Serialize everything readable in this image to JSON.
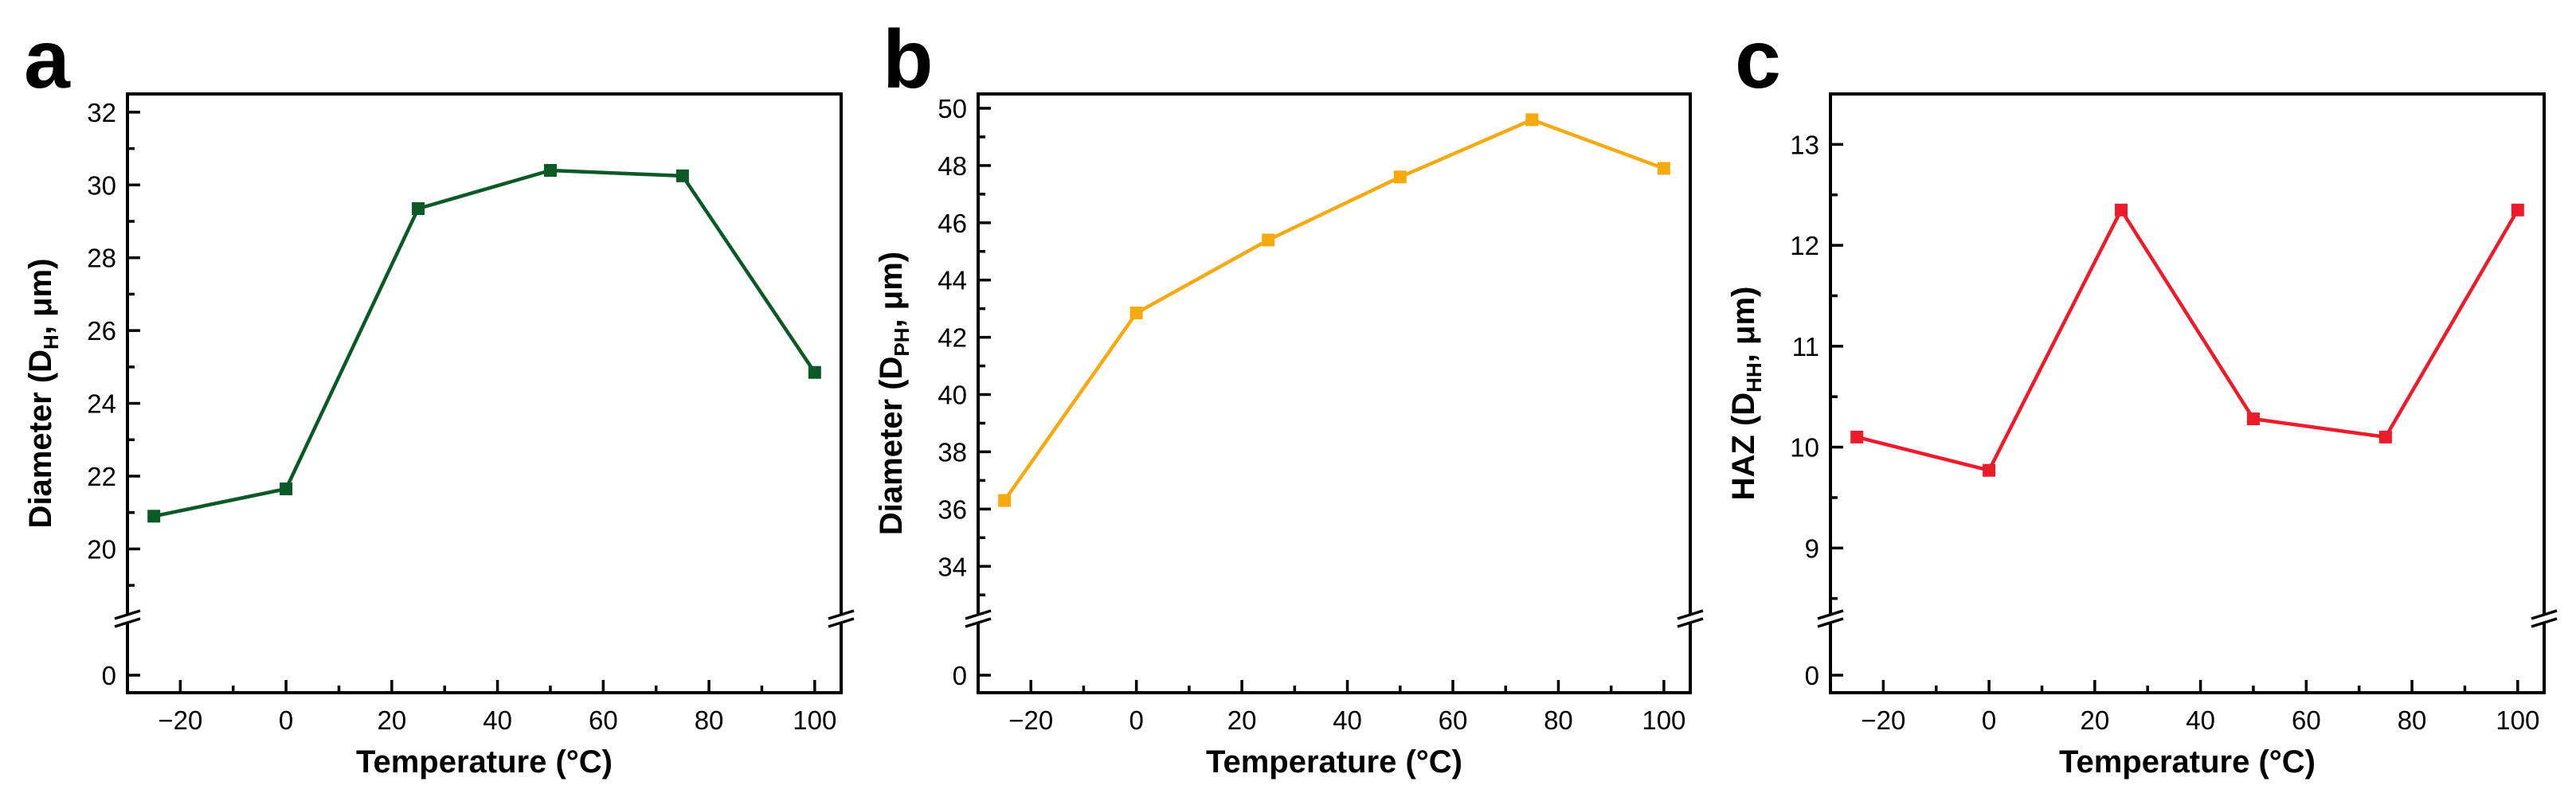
{
  "chart_data": [
    {
      "type": "line",
      "panel": "a",
      "color": "#0b5a26",
      "marker": "square",
      "x": [
        -25,
        0,
        25,
        50,
        75,
        100
      ],
      "values": [
        20.9,
        21.65,
        29.35,
        30.4,
        30.25,
        24.85
      ],
      "xlim": [
        -30,
        105
      ],
      "xticks": [
        -20,
        0,
        20,
        40,
        60,
        80,
        100
      ],
      "xtick_labels": [
        "−20",
        "0",
        "20",
        "40",
        "60",
        "80",
        "100"
      ],
      "ylim": [
        18.5,
        32.5
      ],
      "yticks": [
        20,
        22,
        24,
        26,
        28,
        30,
        32
      ],
      "ytick_labels": [
        "20",
        "22",
        "24",
        "26",
        "28",
        "30",
        "32"
      ],
      "y_break": true,
      "below_break_tick": "0",
      "xlabel": "Temperature (°C)",
      "ylabel": {
        "main": "Diameter (D",
        "sub": "H",
        "tail": ", μm)"
      }
    },
    {
      "type": "line",
      "panel": "b",
      "color": "#f5aa12",
      "marker": "square",
      "x": [
        -25,
        0,
        25,
        50,
        75,
        100
      ],
      "values": [
        36.3,
        42.85,
        45.4,
        47.6,
        49.6,
        47.9
      ],
      "xlim": [
        -30,
        105
      ],
      "xticks": [
        -20,
        0,
        20,
        40,
        60,
        80,
        100
      ],
      "xtick_labels": [
        "−20",
        "0",
        "20",
        "40",
        "60",
        "80",
        "100"
      ],
      "ylim": [
        32.7,
        50.5
      ],
      "yticks": [
        34,
        36,
        38,
        40,
        42,
        44,
        46,
        48,
        50
      ],
      "ytick_labels": [
        "34",
        "36",
        "38",
        "40",
        "42",
        "44",
        "46",
        "48",
        "50"
      ],
      "y_break": true,
      "below_break_tick": "0",
      "xlabel": "Temperature (°C)",
      "ylabel": {
        "main": "Diameter (D",
        "sub": "PH",
        "tail": ", μm)"
      }
    },
    {
      "type": "line",
      "panel": "c",
      "color": "#ee1c2b",
      "marker": "square",
      "x": [
        -25,
        0,
        25,
        50,
        75,
        100
      ],
      "values": [
        10.1,
        9.77,
        12.35,
        10.28,
        10.1,
        12.35
      ],
      "xlim": [
        -30,
        105
      ],
      "xticks": [
        -20,
        0,
        20,
        40,
        60,
        80,
        100
      ],
      "xtick_labels": [
        "−20",
        "0",
        "20",
        "40",
        "60",
        "80",
        "100"
      ],
      "ylim": [
        8.45,
        13.5
      ],
      "yticks": [
        9,
        10,
        11,
        12,
        13
      ],
      "ytick_labels": [
        "9",
        "10",
        "11",
        "12",
        "13"
      ],
      "y_break": true,
      "below_break_tick": "0",
      "xlabel": "Temperature (°C)",
      "ylabel": {
        "main": "HAZ (D",
        "sub": "HH",
        "tail": ", μm)"
      }
    }
  ]
}
